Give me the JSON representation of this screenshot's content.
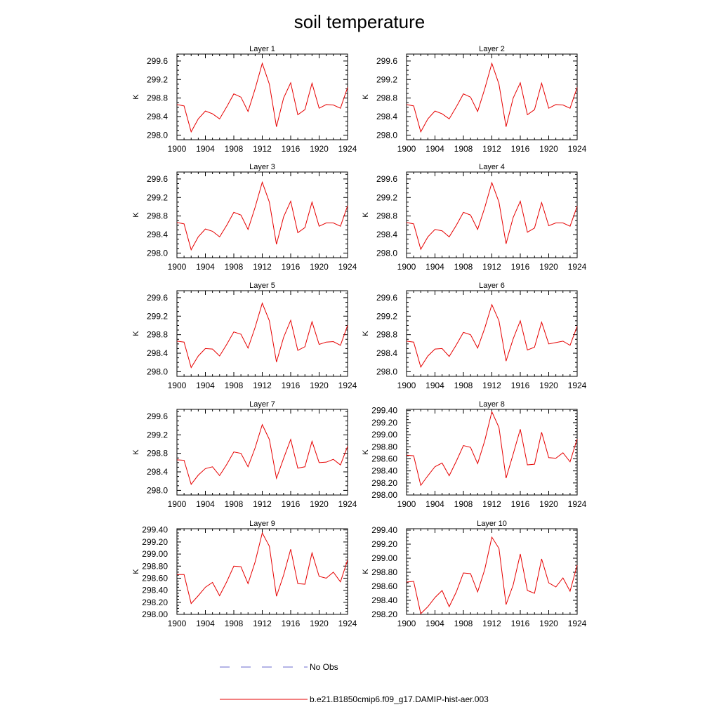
{
  "figure": {
    "title": "soil temperature"
  },
  "legend": {
    "placement": "bottom-center",
    "entries": [
      {
        "label": "No Obs",
        "color": "#6a6acd",
        "style": "dashed"
      },
      {
        "label": "b.e21.B1850cmip6.f09_g17.DAMIP-hist-aer.003",
        "color": "#e60000",
        "style": "solid"
      }
    ]
  },
  "chart_data": [
    {
      "type": "line",
      "title": "Layer 1",
      "ylabel": "K",
      "xlim": [
        1900,
        1924
      ],
      "ylim": [
        297.9,
        299.75
      ],
      "xticks": [
        1900,
        1904,
        1908,
        1912,
        1916,
        1920,
        1924
      ],
      "yticks": [
        298.0,
        298.4,
        298.8,
        299.2,
        299.6
      ],
      "ytick_labels": [
        "298.0",
        "298.4",
        "298.8",
        "299.2",
        "299.6"
      ],
      "series": [
        {
          "color": "#e60000",
          "x": [
            1900,
            1901,
            1902,
            1903,
            1904,
            1905,
            1906,
            1907,
            1908,
            1909,
            1910,
            1911,
            1912,
            1913,
            1914,
            1915,
            1916,
            1917,
            1918,
            1919,
            1920,
            1921,
            1922,
            1923,
            1924
          ],
          "values": [
            298.66,
            298.63,
            298.07,
            298.35,
            298.52,
            298.46,
            298.35,
            298.61,
            298.89,
            298.82,
            298.51,
            299.0,
            299.55,
            299.1,
            298.18,
            298.8,
            299.13,
            298.44,
            298.55,
            299.12,
            298.58,
            298.66,
            298.65,
            298.58,
            299.03
          ]
        }
      ]
    },
    {
      "type": "line",
      "title": "Layer 2",
      "ylabel": "K",
      "xlim": [
        1900,
        1924
      ],
      "ylim": [
        297.9,
        299.75
      ],
      "xticks": [
        1900,
        1904,
        1908,
        1912,
        1916,
        1920,
        1924
      ],
      "yticks": [
        298.0,
        298.4,
        298.8,
        299.2,
        299.6
      ],
      "ytick_labels": [
        "298.0",
        "298.4",
        "298.8",
        "299.2",
        "299.6"
      ],
      "series": [
        {
          "color": "#e60000",
          "x": [
            1900,
            1901,
            1902,
            1903,
            1904,
            1905,
            1906,
            1907,
            1908,
            1909,
            1910,
            1911,
            1912,
            1913,
            1914,
            1915,
            1916,
            1917,
            1918,
            1919,
            1920,
            1921,
            1922,
            1923,
            1924
          ],
          "values": [
            298.66,
            298.63,
            298.07,
            298.35,
            298.52,
            298.46,
            298.35,
            298.61,
            298.89,
            298.82,
            298.51,
            299.0,
            299.55,
            299.1,
            298.18,
            298.8,
            299.13,
            298.44,
            298.55,
            299.12,
            298.58,
            298.66,
            298.65,
            298.58,
            299.03
          ]
        }
      ]
    },
    {
      "type": "line",
      "title": "Layer 3",
      "ylabel": "K",
      "xlim": [
        1900,
        1924
      ],
      "ylim": [
        297.9,
        299.75
      ],
      "xticks": [
        1900,
        1904,
        1908,
        1912,
        1916,
        1920,
        1924
      ],
      "yticks": [
        298.0,
        298.4,
        298.8,
        299.2,
        299.6
      ],
      "ytick_labels": [
        "298.0",
        "298.4",
        "298.8",
        "299.2",
        "299.6"
      ],
      "series": [
        {
          "color": "#e60000",
          "x": [
            1900,
            1901,
            1902,
            1903,
            1904,
            1905,
            1906,
            1907,
            1908,
            1909,
            1910,
            1911,
            1912,
            1913,
            1914,
            1915,
            1916,
            1917,
            1918,
            1919,
            1920,
            1921,
            1922,
            1923,
            1924
          ],
          "values": [
            298.66,
            298.63,
            298.07,
            298.35,
            298.52,
            298.47,
            298.35,
            298.6,
            298.88,
            298.82,
            298.51,
            298.99,
            299.53,
            299.1,
            298.19,
            298.78,
            299.12,
            298.44,
            298.55,
            299.1,
            298.58,
            298.65,
            298.65,
            298.58,
            299.02
          ]
        }
      ]
    },
    {
      "type": "line",
      "title": "Layer 4",
      "ylabel": "K",
      "xlim": [
        1900,
        1924
      ],
      "ylim": [
        297.9,
        299.75
      ],
      "xticks": [
        1900,
        1904,
        1908,
        1912,
        1916,
        1920,
        1924
      ],
      "yticks": [
        298.0,
        298.4,
        298.8,
        299.2,
        299.6
      ],
      "ytick_labels": [
        "298.0",
        "298.4",
        "298.8",
        "299.2",
        "299.6"
      ],
      "series": [
        {
          "color": "#e60000",
          "x": [
            1900,
            1901,
            1902,
            1903,
            1904,
            1905,
            1906,
            1907,
            1908,
            1909,
            1910,
            1911,
            1912,
            1913,
            1914,
            1915,
            1916,
            1917,
            1918,
            1919,
            1920,
            1921,
            1922,
            1923,
            1924
          ],
          "values": [
            298.66,
            298.63,
            298.08,
            298.35,
            298.51,
            298.48,
            298.35,
            298.6,
            298.88,
            298.82,
            298.51,
            298.98,
            299.52,
            299.1,
            298.2,
            298.77,
            299.12,
            298.45,
            298.54,
            299.09,
            298.59,
            298.65,
            298.65,
            298.58,
            299.01
          ]
        }
      ]
    },
    {
      "type": "line",
      "title": "Layer 5",
      "ylabel": "K",
      "xlim": [
        1900,
        1924
      ],
      "ylim": [
        297.9,
        299.75
      ],
      "xticks": [
        1900,
        1904,
        1908,
        1912,
        1916,
        1920,
        1924
      ],
      "yticks": [
        298.0,
        298.4,
        298.8,
        299.2,
        299.6
      ],
      "ytick_labels": [
        "298.0",
        "298.4",
        "298.8",
        "299.2",
        "299.6"
      ],
      "series": [
        {
          "color": "#e60000",
          "x": [
            1900,
            1901,
            1902,
            1903,
            1904,
            1905,
            1906,
            1907,
            1908,
            1909,
            1910,
            1911,
            1912,
            1913,
            1914,
            1915,
            1916,
            1917,
            1918,
            1919,
            1920,
            1921,
            1922,
            1923,
            1924
          ],
          "values": [
            298.66,
            298.64,
            298.09,
            298.34,
            298.5,
            298.49,
            298.34,
            298.59,
            298.86,
            298.81,
            298.51,
            298.96,
            299.48,
            299.1,
            298.21,
            298.74,
            299.11,
            298.46,
            298.54,
            299.08,
            298.59,
            298.64,
            298.65,
            298.57,
            299.0
          ]
        }
      ]
    },
    {
      "type": "line",
      "title": "Layer 6",
      "ylabel": "K",
      "xlim": [
        1900,
        1924
      ],
      "ylim": [
        297.9,
        299.75
      ],
      "xticks": [
        1900,
        1904,
        1908,
        1912,
        1916,
        1920,
        1924
      ],
      "yticks": [
        298.0,
        298.4,
        298.8,
        299.2,
        299.6
      ],
      "ytick_labels": [
        "298.0",
        "298.4",
        "298.8",
        "299.2",
        "299.6"
      ],
      "series": [
        {
          "color": "#e60000",
          "x": [
            1900,
            1901,
            1902,
            1903,
            1904,
            1905,
            1906,
            1907,
            1908,
            1909,
            1910,
            1911,
            1912,
            1913,
            1914,
            1915,
            1916,
            1917,
            1918,
            1919,
            1920,
            1921,
            1922,
            1923,
            1924
          ],
          "values": [
            298.66,
            298.64,
            298.1,
            298.34,
            298.49,
            298.5,
            298.33,
            298.58,
            298.85,
            298.8,
            298.51,
            298.94,
            299.45,
            299.1,
            298.23,
            298.71,
            299.1,
            298.47,
            298.53,
            299.07,
            298.6,
            298.63,
            298.66,
            298.57,
            298.98
          ]
        }
      ]
    },
    {
      "type": "line",
      "title": "Layer 7",
      "ylabel": "K",
      "xlim": [
        1900,
        1924
      ],
      "ylim": [
        297.9,
        299.75
      ],
      "xticks": [
        1900,
        1904,
        1908,
        1912,
        1916,
        1920,
        1924
      ],
      "yticks": [
        298.0,
        298.4,
        298.8,
        299.2,
        299.6
      ],
      "ytick_labels": [
        "298.0",
        "298.4",
        "298.8",
        "299.2",
        "299.6"
      ],
      "series": [
        {
          "color": "#e60000",
          "x": [
            1900,
            1901,
            1902,
            1903,
            1904,
            1905,
            1906,
            1907,
            1908,
            1909,
            1910,
            1911,
            1912,
            1913,
            1914,
            1915,
            1916,
            1917,
            1918,
            1919,
            1920,
            1921,
            1922,
            1923,
            1924
          ],
          "values": [
            298.66,
            298.65,
            298.13,
            298.33,
            298.47,
            298.51,
            298.32,
            298.56,
            298.83,
            298.8,
            298.51,
            298.92,
            299.42,
            299.1,
            298.26,
            298.69,
            299.1,
            298.48,
            298.51,
            299.06,
            298.6,
            298.61,
            298.67,
            298.55,
            298.95
          ]
        }
      ]
    },
    {
      "type": "line",
      "title": "Layer 8",
      "ylabel": "K",
      "xlim": [
        1900,
        1924
      ],
      "ylim": [
        298.0,
        299.42
      ],
      "xticks": [
        1900,
        1904,
        1908,
        1912,
        1916,
        1920,
        1924
      ],
      "yticks": [
        298.0,
        298.2,
        298.4,
        298.6,
        298.8,
        299.0,
        299.2,
        299.4
      ],
      "ytick_labels": [
        "298.00",
        "298.20",
        "298.40",
        "298.60",
        "298.80",
        "299.00",
        "299.20",
        "299.40"
      ],
      "series": [
        {
          "color": "#e60000",
          "x": [
            1900,
            1901,
            1902,
            1903,
            1904,
            1905,
            1906,
            1907,
            1908,
            1909,
            1910,
            1911,
            1912,
            1913,
            1914,
            1915,
            1916,
            1917,
            1918,
            1919,
            1920,
            1921,
            1922,
            1923,
            1924
          ],
          "values": [
            298.66,
            298.65,
            298.16,
            298.32,
            298.47,
            298.53,
            298.32,
            298.56,
            298.82,
            298.79,
            298.52,
            298.9,
            299.38,
            299.12,
            298.28,
            298.68,
            299.09,
            298.5,
            298.51,
            299.04,
            298.62,
            298.61,
            298.7,
            298.55,
            298.93
          ]
        }
      ]
    },
    {
      "type": "line",
      "title": "Layer 9",
      "ylabel": "K",
      "xlim": [
        1900,
        1924
      ],
      "ylim": [
        298.0,
        299.42
      ],
      "xticks": [
        1900,
        1904,
        1908,
        1912,
        1916,
        1920,
        1924
      ],
      "yticks": [
        298.0,
        298.2,
        298.4,
        298.6,
        298.8,
        299.0,
        299.2,
        299.4
      ],
      "ytick_labels": [
        "298.00",
        "298.20",
        "298.40",
        "298.60",
        "298.80",
        "299.00",
        "299.20",
        "299.40"
      ],
      "series": [
        {
          "color": "#e60000",
          "x": [
            1900,
            1901,
            1902,
            1903,
            1904,
            1905,
            1906,
            1907,
            1908,
            1909,
            1910,
            1911,
            1912,
            1913,
            1914,
            1915,
            1916,
            1917,
            1918,
            1919,
            1920,
            1921,
            1922,
            1923,
            1924
          ],
          "values": [
            298.66,
            298.66,
            298.18,
            298.31,
            298.45,
            298.53,
            298.31,
            298.54,
            298.8,
            298.79,
            298.51,
            298.87,
            299.35,
            299.13,
            298.3,
            298.65,
            299.08,
            298.51,
            298.5,
            299.02,
            298.63,
            298.6,
            298.7,
            298.54,
            298.9
          ]
        }
      ]
    },
    {
      "type": "line",
      "title": "Layer 10",
      "ylabel": "K",
      "xlim": [
        1900,
        1924
      ],
      "ylim": [
        298.2,
        299.42
      ],
      "xticks": [
        1900,
        1904,
        1908,
        1912,
        1916,
        1920,
        1924
      ],
      "yticks": [
        298.2,
        298.4,
        298.6,
        298.8,
        299.0,
        299.2,
        299.4
      ],
      "ytick_labels": [
        "298.20",
        "298.40",
        "298.60",
        "298.80",
        "299.00",
        "299.20",
        "299.40"
      ],
      "series": [
        {
          "color": "#e60000",
          "x": [
            1900,
            1901,
            1902,
            1903,
            1904,
            1905,
            1906,
            1907,
            1908,
            1909,
            1910,
            1911,
            1912,
            1913,
            1914,
            1915,
            1916,
            1917,
            1918,
            1919,
            1920,
            1921,
            1922,
            1923,
            1924
          ],
          "values": [
            298.66,
            298.67,
            298.21,
            298.31,
            298.44,
            298.54,
            298.31,
            298.52,
            298.79,
            298.78,
            298.52,
            298.84,
            299.3,
            299.14,
            298.34,
            298.62,
            299.06,
            298.54,
            298.5,
            298.99,
            298.65,
            298.59,
            298.72,
            298.53,
            298.9
          ]
        }
      ]
    }
  ]
}
